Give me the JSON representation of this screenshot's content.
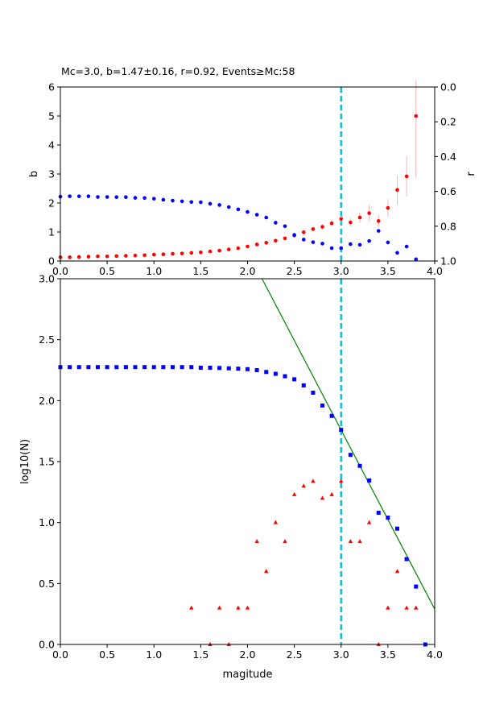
{
  "colors": {
    "b_series": "#ff0000",
    "b_error": "#ffb0b0",
    "r_series": "#0000ff",
    "cumulative": "#0000ff",
    "noncumulative": "#ff0000",
    "fit_line": "#008000",
    "mc_line": "#17becf"
  },
  "chart_data": [
    {
      "type": "scatter",
      "title": "Mc=3.0, b=1.47±0.16, r=0.92, Events≥Mc:58",
      "xlabel": "",
      "ylabel": "b",
      "y2label": "r",
      "xlim": [
        0,
        4
      ],
      "ylim": [
        0,
        6
      ],
      "y2lim": [
        1,
        0
      ],
      "y2_inverted": true,
      "xticks": [
        "0.0",
        "0.5",
        "1.0",
        "1.5",
        "2.0",
        "2.5",
        "3.0",
        "3.5",
        "4.0"
      ],
      "yticks": [
        "0",
        "1",
        "2",
        "3",
        "4",
        "5",
        "6"
      ],
      "y2ticks": [
        "0.0",
        "0.2",
        "0.4",
        "0.6",
        "0.8",
        "1.0"
      ],
      "mc": 3.0,
      "grid": false,
      "series": [
        {
          "axis": "left",
          "marker": "circle",
          "error_bars": true,
          "x": [
            0.0,
            0.1,
            0.2,
            0.3,
            0.4,
            0.5,
            0.6,
            0.7,
            0.8,
            0.9,
            1.0,
            1.1,
            1.2,
            1.3,
            1.4,
            1.5,
            1.6,
            1.7,
            1.8,
            1.9,
            2.0,
            2.1,
            2.2,
            2.3,
            2.4,
            2.5,
            2.6,
            2.7,
            2.8,
            2.9,
            3.0,
            3.1,
            3.2,
            3.3,
            3.4,
            3.5,
            3.6,
            3.7,
            3.8
          ],
          "values": [
            0.13,
            0.13,
            0.14,
            0.15,
            0.16,
            0.16,
            0.17,
            0.18,
            0.19,
            0.2,
            0.22,
            0.23,
            0.25,
            0.26,
            0.28,
            0.3,
            0.33,
            0.36,
            0.4,
            0.44,
            0.5,
            0.57,
            0.63,
            0.7,
            0.78,
            0.88,
            0.99,
            1.1,
            1.18,
            1.3,
            1.45,
            1.33,
            1.5,
            1.65,
            1.38,
            1.83,
            2.45,
            2.92,
            5.0
          ],
          "errors": [
            0.01,
            0.01,
            0.01,
            0.01,
            0.01,
            0.01,
            0.01,
            0.01,
            0.01,
            0.01,
            0.01,
            0.01,
            0.01,
            0.01,
            0.01,
            0.02,
            0.02,
            0.02,
            0.02,
            0.03,
            0.03,
            0.04,
            0.04,
            0.05,
            0.05,
            0.06,
            0.07,
            0.08,
            0.09,
            0.1,
            0.12,
            0.14,
            0.18,
            0.28,
            0.22,
            0.3,
            0.5,
            0.7,
            2.1
          ]
        },
        {
          "axis": "right",
          "marker": "circle",
          "x": [
            0.0,
            0.1,
            0.2,
            0.3,
            0.4,
            0.5,
            0.6,
            0.7,
            0.8,
            0.9,
            1.0,
            1.1,
            1.2,
            1.3,
            1.4,
            1.5,
            1.6,
            1.7,
            1.8,
            1.9,
            2.0,
            2.1,
            2.2,
            2.3,
            2.4,
            2.5,
            2.6,
            2.7,
            2.8,
            2.9,
            3.0,
            3.1,
            3.2,
            3.3,
            3.4,
            3.5,
            3.6,
            3.7,
            3.8
          ],
          "values": [
            0.63,
            0.628,
            0.628,
            0.628,
            0.632,
            0.632,
            0.633,
            0.633,
            0.637,
            0.638,
            0.642,
            0.648,
            0.653,
            0.657,
            0.661,
            0.662,
            0.671,
            0.678,
            0.69,
            0.703,
            0.718,
            0.734,
            0.75,
            0.78,
            0.8,
            0.85,
            0.877,
            0.892,
            0.9,
            0.926,
            0.926,
            0.903,
            0.907,
            0.885,
            0.827,
            0.893,
            0.953,
            0.917,
            0.99
          ]
        }
      ]
    },
    {
      "type": "scatter",
      "title": "",
      "xlabel": "magitude",
      "ylabel": "log10(N)",
      "xlim": [
        0,
        4
      ],
      "ylim": [
        0,
        3
      ],
      "xticks": [
        "0.0",
        "0.5",
        "1.0",
        "1.5",
        "2.0",
        "2.5",
        "3.0",
        "3.5",
        "4.0"
      ],
      "yticks": [
        "0.0",
        "0.5",
        "1.0",
        "1.5",
        "2.0",
        "2.5",
        "3.0"
      ],
      "mc": 3.0,
      "grid": false,
      "fit_line": {
        "x": [
          2.155,
          4.0
        ],
        "y": [
          3.0,
          0.29
        ]
      },
      "series": [
        {
          "marker": "square",
          "x": [
            0.0,
            0.1,
            0.2,
            0.3,
            0.4,
            0.5,
            0.6,
            0.7,
            0.8,
            0.9,
            1.0,
            1.1,
            1.2,
            1.3,
            1.4,
            1.5,
            1.6,
            1.7,
            1.8,
            1.9,
            2.0,
            2.1,
            2.2,
            2.3,
            2.4,
            2.5,
            2.6,
            2.7,
            2.8,
            2.9,
            3.0,
            3.1,
            3.2,
            3.3,
            3.4,
            3.5,
            3.6,
            3.7,
            3.8,
            3.9
          ],
          "values": [
            2.275,
            2.275,
            2.275,
            2.275,
            2.275,
            2.275,
            2.275,
            2.275,
            2.275,
            2.275,
            2.275,
            2.275,
            2.275,
            2.275,
            2.275,
            2.27,
            2.27,
            2.268,
            2.265,
            2.262,
            2.258,
            2.25,
            2.235,
            2.22,
            2.2,
            2.175,
            2.125,
            2.065,
            1.96,
            1.875,
            1.76,
            1.555,
            1.465,
            1.345,
            1.08,
            1.04,
            0.95,
            0.7,
            0.475,
            0.0
          ]
        },
        {
          "marker": "triangle",
          "x": [
            1.4,
            1.6,
            1.7,
            1.8,
            1.9,
            2.0,
            2.1,
            2.2,
            2.3,
            2.4,
            2.5,
            2.6,
            2.7,
            2.8,
            2.9,
            3.0,
            3.1,
            3.2,
            3.3,
            3.4,
            3.5,
            3.6,
            3.7,
            3.8
          ],
          "values": [
            0.3,
            0.0,
            0.3,
            0.0,
            0.3,
            0.3,
            0.845,
            0.6,
            1.0,
            0.845,
            1.23,
            1.3,
            1.34,
            1.2,
            1.23,
            1.34,
            0.845,
            0.845,
            1.0,
            0.0,
            0.3,
            0.6,
            0.3,
            0.3
          ]
        }
      ]
    }
  ]
}
